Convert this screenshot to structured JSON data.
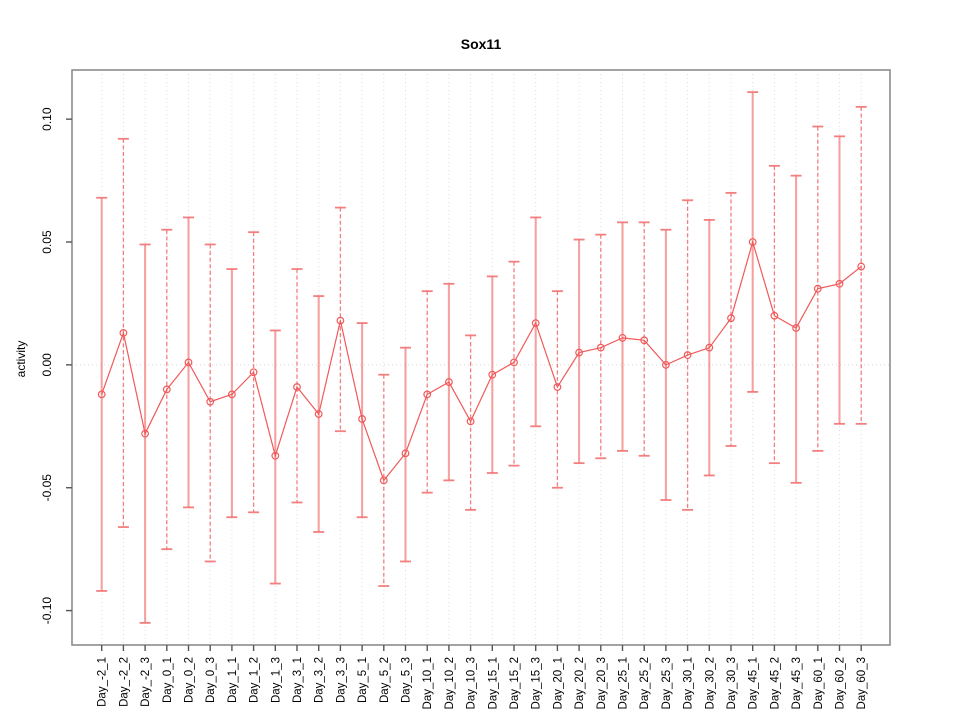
{
  "chart_data": {
    "type": "line",
    "title": "Sox11",
    "xlabel": "",
    "ylabel": "activity",
    "legend": "none",
    "grid": "dotted vertical gridline at each category; dotted horizontal line at y=0",
    "ylim": [
      -0.114,
      0.12
    ],
    "yticks": [
      -0.1,
      -0.05,
      0.0,
      0.05,
      0.1
    ],
    "ytick_labels": [
      "-0.10",
      "-0.05",
      "0.00",
      "0.05",
      "0.10"
    ],
    "categories": [
      "Day_-2_1",
      "Day_-2_2",
      "Day_-2_3",
      "Day_0_1",
      "Day_0_2",
      "Day_0_3",
      "Day_1_1",
      "Day_1_2",
      "Day_1_3",
      "Day_3_1",
      "Day_3_2",
      "Day_3_3",
      "Day_5_1",
      "Day_5_2",
      "Day_5_3",
      "Day_10_1",
      "Day_10_2",
      "Day_10_3",
      "Day_15_1",
      "Day_15_2",
      "Day_15_3",
      "Day_20_1",
      "Day_20_2",
      "Day_20_3",
      "Day_25_1",
      "Day_25_2",
      "Day_25_3",
      "Day_30_1",
      "Day_30_2",
      "Day_30_3",
      "Day_45_1",
      "Day_45_2",
      "Day_45_3",
      "Day_60_1",
      "Day_60_2",
      "Day_60_3"
    ],
    "series": [
      {
        "name": "activity",
        "marker": "open-circle",
        "values": [
          -0.012,
          0.013,
          -0.028,
          -0.01,
          0.001,
          -0.015,
          -0.012,
          -0.003,
          -0.037,
          -0.009,
          -0.02,
          0.018,
          -0.022,
          -0.047,
          -0.036,
          -0.012,
          -0.007,
          -0.023,
          -0.004,
          0.001,
          0.017,
          -0.009,
          0.005,
          0.007,
          0.011,
          0.01,
          0.0,
          0.004,
          0.007,
          0.019,
          0.05,
          0.02,
          0.015,
          0.031,
          0.033,
          0.04
        ],
        "error_low": [
          -0.092,
          -0.066,
          -0.105,
          -0.075,
          -0.058,
          -0.08,
          -0.062,
          -0.06,
          -0.089,
          -0.056,
          -0.068,
          -0.027,
          -0.062,
          -0.09,
          -0.08,
          -0.052,
          -0.047,
          -0.059,
          -0.044,
          -0.041,
          -0.025,
          -0.05,
          -0.04,
          -0.038,
          -0.035,
          -0.037,
          -0.055,
          -0.059,
          -0.045,
          -0.033,
          -0.011,
          -0.04,
          -0.048,
          -0.035,
          -0.024,
          -0.024
        ],
        "error_high": [
          0.068,
          0.092,
          0.049,
          0.055,
          0.06,
          0.049,
          0.039,
          0.054,
          0.014,
          0.039,
          0.028,
          0.064,
          0.017,
          -0.004,
          0.007,
          0.03,
          0.033,
          0.012,
          0.036,
          0.042,
          0.06,
          0.03,
          0.051,
          0.053,
          0.058,
          0.058,
          0.055,
          0.067,
          0.059,
          0.07,
          0.111,
          0.081,
          0.077,
          0.097,
          0.093,
          0.105
        ]
      }
    ],
    "colors": {
      "series": "#F05A5A",
      "whisker": "#F37272",
      "marker_fill": "none",
      "gridline": "#DCDCDC",
      "zero_line": "#D9D9D9",
      "frame": "#8C8C8C",
      "tick": "#555555",
      "text": "#000000",
      "background": "#FFFFFF"
    }
  }
}
